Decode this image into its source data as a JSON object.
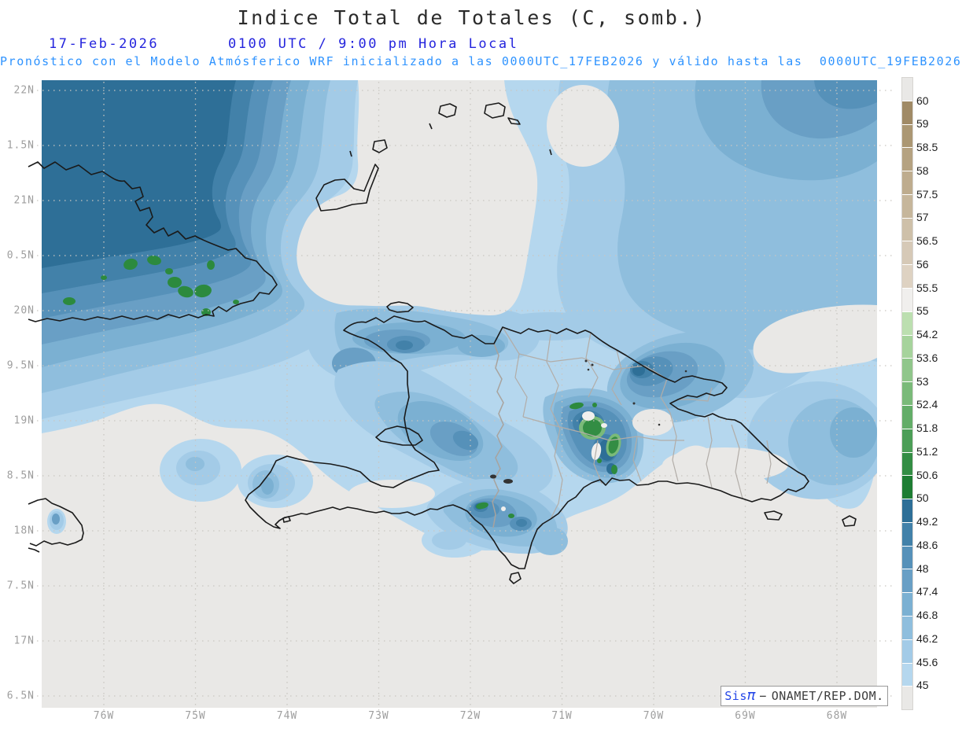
{
  "title": "Indice Total de Totales (C, somb.)",
  "header": {
    "date": "17-Feb-2026",
    "time": "0100 UTC / 9:00 pm Hora Local",
    "forecast_note": "Pronóstico con el Modelo Atmósferico WRF inicializado a las 0000UTC_17FEB2026 y válido hasta las  0000UTC_19FEB2026"
  },
  "axes": {
    "y_labels": [
      "22N",
      "1.5N",
      "21N",
      "0.5N",
      "20N",
      "9.5N",
      "19N",
      "8.5N",
      "18N",
      "7.5N",
      "17N",
      "6.5N"
    ],
    "x_labels": [
      "76W",
      "75W",
      "74W",
      "73W",
      "72W",
      "71W",
      "70W",
      "69W",
      "68W"
    ]
  },
  "colorbar": {
    "tick_labels": [
      "60",
      "59",
      "58.5",
      "58",
      "57.5",
      "57",
      "56.5",
      "56",
      "55.5",
      "55",
      "54.2",
      "53.6",
      "53",
      "52.4",
      "51.8",
      "51.2",
      "50.6",
      "50",
      "49.2",
      "48.6",
      "48",
      "47.4",
      "46.8",
      "46.2",
      "45.6",
      "45"
    ],
    "segment_colors_top_to_bottom": [
      "#e9e8e6",
      "#a08a66",
      "#ab9773",
      "#b5a281",
      "#beac8e",
      "#c6b69b",
      "#cec0a9",
      "#d6c9b7",
      "#ded2c2",
      "#f0efed",
      "#bcdfb0",
      "#a6d39c",
      "#90c68b",
      "#7aba79",
      "#63ad68",
      "#4c9e57",
      "#338d44",
      "#1e7d33",
      "#2e6f97",
      "#4281a9",
      "#5691b9",
      "#699fc5",
      "#7bb0d2",
      "#8fbedd",
      "#a3cbe7",
      "#b5d7ee",
      "#e9e8e6"
    ]
  },
  "watermark": {
    "brand_prefix": "Sis",
    "brand_symbol": "π",
    "separator": "−",
    "org": "ONAMET/REP.DOM."
  },
  "colors": {
    "map_background": "#e9e8e6",
    "header_date_blue": "#2424dd",
    "subtitle_blue": "#2e93ff",
    "coastline": "#1a1a1a",
    "province_border": "#b2ada8",
    "gridline": "#c9c6c1"
  }
}
